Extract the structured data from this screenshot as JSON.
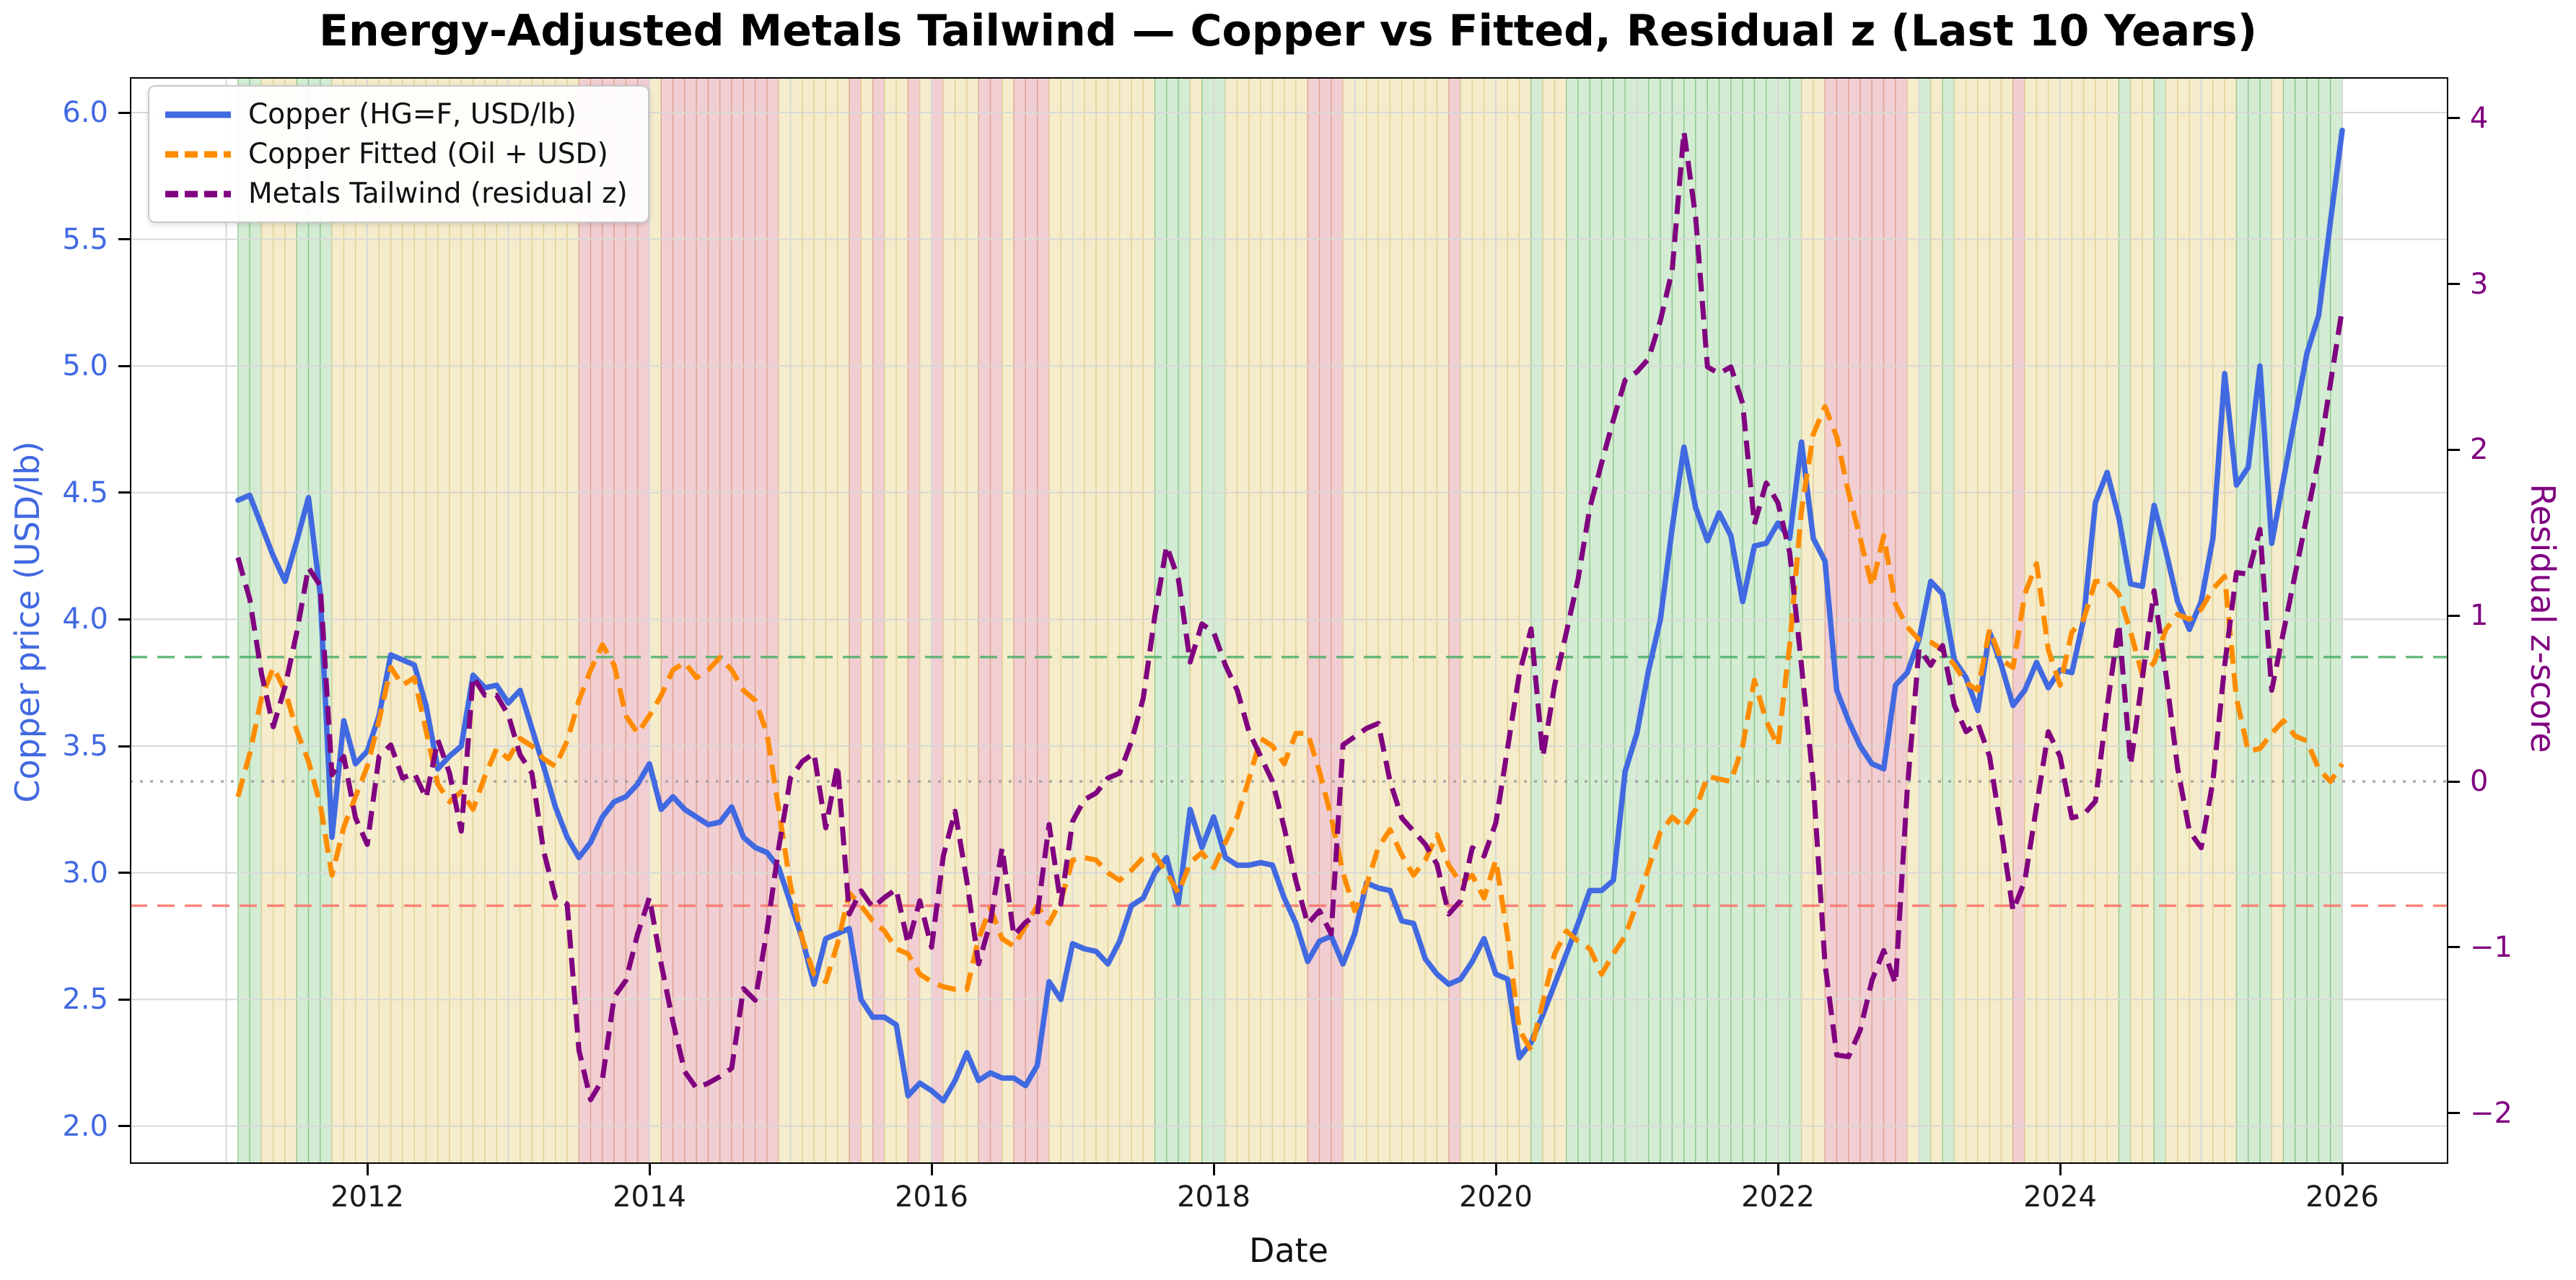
{
  "title": "Energy-Adjusted Metals Tailwind — Copper vs Fitted, Residual z (Last 10 Years)",
  "axes": {
    "x": {
      "label": "Date",
      "ticks": [
        "2012",
        "2014",
        "2016",
        "2018",
        "2020",
        "2022",
        "2024",
        "2026"
      ],
      "tick_values": [
        2012,
        2014,
        2016,
        2018,
        2020,
        2022,
        2024,
        2026
      ]
    },
    "y_left": {
      "label": "Copper price (USD/lb)",
      "color": "#4169E1",
      "ticks": [
        "6.0",
        "5.5",
        "5.0",
        "4.5",
        "4.0",
        "3.5",
        "3.0",
        "2.5",
        "2.0"
      ],
      "tick_values": [
        6.0,
        5.5,
        5.0,
        4.5,
        4.0,
        3.5,
        3.0,
        2.5,
        2.0
      ]
    },
    "y_right": {
      "label": "Residual z-score",
      "color": "#800080",
      "ticks": [
        "4",
        "3",
        "2",
        "1",
        "0",
        "−1",
        "−2"
      ],
      "tick_values": [
        4,
        3,
        2,
        1,
        0,
        -1,
        -2
      ]
    }
  },
  "legend": {
    "items": [
      {
        "label": "Copper (HG=F, USD/lb)",
        "color": "#4169E1",
        "dash": "none"
      },
      {
        "label": "Copper Fitted (Oil + USD)",
        "color": "#FF8C00",
        "dash": "26 13"
      },
      {
        "label": "Metals Tailwind (residual z)",
        "color": "#800080",
        "dash": "26 13"
      }
    ]
  },
  "ref_lines": [
    {
      "name": "tailwind-upper-threshold",
      "axis": "z",
      "value": 0.75,
      "color": "#4daf6a",
      "style": "dashed"
    },
    {
      "name": "residual-zero-line",
      "axis": "z",
      "value": 0.0,
      "color": "#9e9e9e",
      "style": "dotted"
    },
    {
      "name": "tailwind-lower-threshold",
      "axis": "z",
      "value": -0.75,
      "color": "#fa7268",
      "style": "dashed"
    }
  ],
  "chart_data": {
    "type": "line",
    "frequency": "monthly",
    "x_start": {
      "year": 2011,
      "month": 2
    },
    "x_end": {
      "year": 2026,
      "month": 1
    },
    "x_axis_label": "Date",
    "y_left_range_note": "copper USD/lb, ticks 2.0-6.0",
    "y_right_range_note": "residual z-score, ticks -2 to 4",
    "grid": true,
    "legend_position": "upper left",
    "bands": {
      "rule": "monthly regime shading from residual z",
      "green_above": 0.75,
      "red_below": -0.75,
      "colors": {
        "green": "#d3ecd3",
        "yellow": "#f5eccb",
        "red": "#f1ced2"
      },
      "edge_colors": {
        "green": "#82bf82",
        "yellow": "#dfc98a",
        "red": "#d89a84"
      }
    },
    "series": [
      {
        "name": "Copper (HG=F, USD/lb)",
        "axis": "left",
        "color": "#4169E1",
        "style": "solid",
        "values": [
          4.47,
          4.49,
          4.37,
          4.25,
          4.15,
          4.31,
          4.48,
          4.1,
          3.14,
          3.6,
          3.43,
          3.48,
          3.62,
          3.86,
          3.84,
          3.82,
          3.66,
          3.41,
          3.46,
          3.5,
          3.78,
          3.73,
          3.74,
          3.67,
          3.72,
          3.57,
          3.42,
          3.26,
          3.14,
          3.06,
          3.12,
          3.22,
          3.28,
          3.3,
          3.35,
          3.43,
          3.25,
          3.3,
          3.25,
          3.22,
          3.19,
          3.2,
          3.26,
          3.14,
          3.1,
          3.08,
          3.02,
          2.88,
          2.74,
          2.56,
          2.74,
          2.76,
          2.78,
          2.5,
          2.43,
          2.43,
          2.4,
          2.12,
          2.17,
          2.14,
          2.1,
          2.18,
          2.29,
          2.18,
          2.21,
          2.19,
          2.19,
          2.16,
          2.24,
          2.57,
          2.5,
          2.72,
          2.7,
          2.69,
          2.64,
          2.73,
          2.87,
          2.9,
          3.0,
          3.06,
          2.88,
          3.25,
          3.1,
          3.22,
          3.06,
          3.03,
          3.03,
          3.04,
          3.03,
          2.9,
          2.8,
          2.65,
          2.73,
          2.75,
          2.64,
          2.76,
          2.96,
          2.94,
          2.93,
          2.81,
          2.8,
          2.66,
          2.6,
          2.56,
          2.58,
          2.65,
          2.74,
          2.6,
          2.58,
          2.27,
          2.33,
          2.44,
          2.56,
          2.68,
          2.8,
          2.93,
          2.93,
          2.97,
          3.4,
          3.55,
          3.8,
          4.0,
          4.36,
          4.68,
          4.44,
          4.31,
          4.42,
          4.33,
          4.07,
          4.29,
          4.3,
          4.38,
          4.32,
          4.7,
          4.32,
          4.23,
          3.72,
          3.6,
          3.5,
          3.43,
          3.41,
          3.74,
          3.79,
          3.92,
          4.15,
          4.1,
          3.84,
          3.77,
          3.64,
          3.95,
          3.82,
          3.66,
          3.72,
          3.83,
          3.73,
          3.8,
          3.79,
          4.0,
          4.46,
          4.58,
          4.4,
          4.14,
          4.13,
          4.45,
          4.27,
          4.07,
          3.96,
          4.07,
          4.32,
          4.97,
          4.53,
          4.6,
          5.0,
          4.3,
          4.55,
          4.8,
          5.05,
          5.2,
          5.57,
          5.93
        ]
      },
      {
        "name": "Copper Fitted (Oil + USD)",
        "axis": "left",
        "color": "#FF8C00",
        "style": "dashed",
        "values": [
          3.3,
          3.47,
          3.69,
          3.81,
          3.72,
          3.56,
          3.44,
          3.27,
          2.99,
          3.18,
          3.3,
          3.42,
          3.6,
          3.81,
          3.74,
          3.77,
          3.56,
          3.35,
          3.28,
          3.32,
          3.25,
          3.38,
          3.49,
          3.45,
          3.53,
          3.5,
          3.45,
          3.42,
          3.52,
          3.68,
          3.8,
          3.9,
          3.82,
          3.62,
          3.55,
          3.62,
          3.7,
          3.8,
          3.83,
          3.77,
          3.8,
          3.85,
          3.8,
          3.72,
          3.68,
          3.55,
          3.25,
          2.95,
          2.74,
          2.6,
          2.57,
          2.72,
          2.92,
          2.87,
          2.81,
          2.77,
          2.7,
          2.68,
          2.6,
          2.57,
          2.55,
          2.54,
          2.54,
          2.74,
          2.86,
          2.74,
          2.71,
          2.79,
          2.87,
          2.8,
          2.89,
          3.05,
          3.06,
          3.05,
          3.0,
          2.97,
          3.01,
          3.06,
          3.07,
          3.0,
          2.92,
          3.04,
          3.08,
          3.02,
          3.12,
          3.22,
          3.37,
          3.53,
          3.5,
          3.43,
          3.55,
          3.55,
          3.4,
          3.22,
          3.0,
          2.85,
          2.95,
          3.1,
          3.17,
          3.07,
          2.99,
          3.05,
          3.15,
          3.03,
          2.96,
          2.99,
          2.9,
          3.05,
          2.75,
          2.38,
          2.3,
          2.49,
          2.68,
          2.77,
          2.73,
          2.7,
          2.6,
          2.68,
          2.75,
          2.88,
          3.02,
          3.16,
          3.22,
          3.18,
          3.25,
          3.38,
          3.37,
          3.36,
          3.5,
          3.76,
          3.6,
          3.5,
          3.9,
          4.43,
          4.73,
          4.84,
          4.72,
          4.5,
          4.32,
          4.13,
          4.33,
          4.06,
          3.97,
          3.92,
          3.91,
          3.88,
          3.82,
          3.75,
          3.72,
          3.96,
          3.84,
          3.81,
          4.1,
          4.22,
          3.88,
          3.74,
          3.95,
          4.0,
          4.15,
          4.15,
          4.1,
          3.95,
          3.78,
          3.83,
          3.96,
          4.02,
          4.0,
          4.04,
          4.12,
          4.17,
          3.69,
          3.48,
          3.49,
          3.55,
          3.6,
          3.54,
          3.52,
          3.41,
          3.36,
          3.43
        ]
      },
      {
        "name": "Metals Tailwind (residual z)",
        "axis": "right",
        "color": "#800080",
        "style": "dashed",
        "values": [
          1.35,
          1.1,
          0.65,
          0.33,
          0.57,
          0.9,
          1.29,
          1.18,
          0.04,
          0.15,
          -0.22,
          -0.38,
          0.15,
          0.22,
          0.02,
          0.05,
          -0.1,
          0.25,
          0.05,
          -0.3,
          0.63,
          0.52,
          0.52,
          0.4,
          0.16,
          0.05,
          -0.42,
          -0.7,
          -0.74,
          -1.62,
          -1.92,
          -1.8,
          -1.3,
          -1.2,
          -0.92,
          -0.7,
          -1.1,
          -1.45,
          -1.75,
          -1.85,
          -1.82,
          -1.78,
          -1.73,
          -1.25,
          -1.32,
          -0.9,
          -0.4,
          0.02,
          0.12,
          0.17,
          -0.28,
          0.1,
          -0.8,
          -0.66,
          -0.76,
          -0.7,
          -0.65,
          -0.98,
          -0.72,
          -1.0,
          -0.45,
          -0.18,
          -0.6,
          -1.1,
          -0.85,
          -0.4,
          -0.93,
          -0.85,
          -0.8,
          -0.26,
          -0.74,
          -0.24,
          -0.11,
          -0.07,
          0.02,
          0.05,
          0.24,
          0.5,
          1.0,
          1.42,
          1.22,
          0.72,
          0.95,
          0.9,
          0.7,
          0.55,
          0.3,
          0.15,
          0.0,
          -0.28,
          -0.6,
          -0.86,
          -0.78,
          -0.92,
          0.22,
          0.27,
          0.32,
          0.35,
          0.0,
          -0.22,
          -0.3,
          -0.38,
          -0.5,
          -0.8,
          -0.72,
          -0.4,
          -0.45,
          -0.25,
          0.2,
          0.65,
          0.92,
          0.15,
          0.58,
          0.9,
          1.22,
          1.65,
          1.92,
          2.18,
          2.42,
          2.47,
          2.55,
          2.78,
          3.08,
          3.92,
          3.4,
          2.5,
          2.46,
          2.5,
          2.28,
          1.55,
          1.8,
          1.68,
          1.38,
          0.7,
          0.0,
          -1.1,
          -1.65,
          -1.66,
          -1.5,
          -1.2,
          -1.02,
          -1.22,
          -0.05,
          0.8,
          0.7,
          0.82,
          0.46,
          0.3,
          0.35,
          0.15,
          -0.3,
          -0.78,
          -0.6,
          -0.15,
          0.3,
          0.15,
          -0.22,
          -0.2,
          -0.12,
          0.45,
          0.95,
          0.1,
          0.62,
          1.15,
          0.65,
          0.08,
          -0.3,
          -0.4,
          0.0,
          0.7,
          1.26,
          1.25,
          1.52,
          0.55,
          0.9,
          1.25,
          1.6,
          1.95,
          2.4,
          2.85
        ]
      }
    ]
  }
}
